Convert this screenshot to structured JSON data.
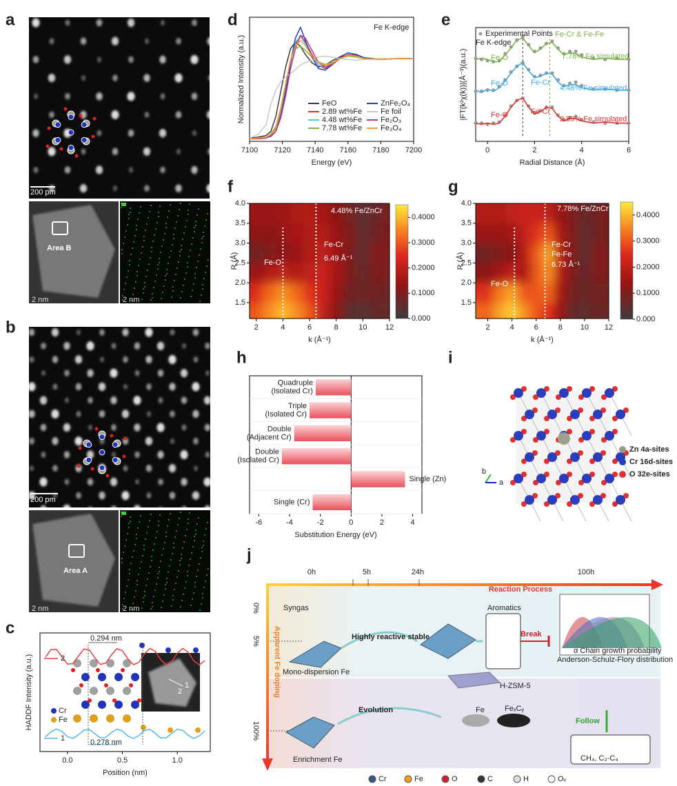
{
  "panel_labels": [
    "a",
    "b",
    "c",
    "d",
    "e",
    "f",
    "g",
    "h",
    "i",
    "j"
  ],
  "images": {
    "scale_a": "200 pm",
    "area_b": "Area B",
    "scale_b": "200 pm",
    "area_a": "Area A",
    "small_scale": "2 nm"
  },
  "chart_data": [
    {
      "type": "line",
      "xlabel": "Position (nm)",
      "ylabel": "HADDF Intensity (a.u.)",
      "xlim": [
        -0.25,
        1.3
      ],
      "xticks": [
        {
          "value": 0,
          "label": "0.0"
        },
        {
          "value": 0.5,
          "label": "0.5"
        },
        {
          "value": 1,
          "label": "1.0"
        }
      ],
      "ylim": [
        0,
        10
      ],
      "x": [
        -0.2,
        -0.15,
        -0.1,
        -0.05,
        0,
        0.05,
        0.1,
        0.15,
        0.2,
        0.25,
        0.3,
        0.35,
        0.4,
        0.45,
        0.5,
        0.55,
        0.6,
        0.65,
        0.7,
        0.75,
        0.8,
        0.85,
        0.9,
        0.95,
        1.0,
        1.05,
        1.1,
        1.15,
        1.2,
        1.25
      ],
      "series": [
        {
          "name": "2",
          "color": "#e8403a",
          "values": [
            7.96,
            8.6,
            8.61,
            7.99,
            7.38,
            7.41,
            8.05,
            8.64,
            8.56,
            7.9,
            7.34,
            7.47,
            8.14,
            8.67,
            8.5,
            7.82,
            7.32,
            7.52,
            8.23,
            8.69,
            8.44,
            7.74,
            7.31,
            7.59,
            8.3,
            8.7,
            8.37,
            7.65,
            7.3,
            7.68
          ]
        },
        {
          "name": "1",
          "color": "#56b8e8",
          "values": [
            1.23,
            1.66,
            1.9,
            1.69,
            1.26,
            1.11,
            1.4,
            1.81,
            1.86,
            1.5,
            1.14,
            1.2,
            1.6,
            1.89,
            1.73,
            1.31,
            1.1,
            1.34,
            1.77,
            1.88,
            1.54,
            1.15,
            1.16,
            1.53,
            1.88,
            1.78,
            1.36,
            1.1,
            1.32,
            1.74
          ]
        }
      ],
      "annotations": [
        "0.294 nm",
        "0.278 nm"
      ],
      "legend": [
        "Cr",
        "Fe"
      ]
    },
    {
      "type": "line",
      "xlabel": "Energy (eV)",
      "ylabel": "Normalized Intensity (a.u.)",
      "annotation": "Fe K-edge",
      "xlim": [
        7100,
        7200
      ],
      "xticks": [
        7100,
        7120,
        7140,
        7160,
        7180,
        7200
      ],
      "ylim": [
        0,
        1.5
      ],
      "x": [
        7100,
        7105,
        7110,
        7113,
        7116,
        7119,
        7122,
        7125,
        7128,
        7131,
        7134,
        7138,
        7142,
        7146,
        7150,
        7155,
        7160,
        7165,
        7170,
        7180,
        7190,
        7200
      ],
      "series": [
        {
          "name": "FeO",
          "color": "#3a3a3a",
          "values": [
            0.04,
            0.05,
            0.07,
            0.12,
            0.3,
            0.6,
            0.9,
            1.12,
            1.2,
            1.15,
            1.05,
            0.95,
            0.9,
            0.92,
            0.97,
            1.02,
            1.04,
            1.02,
            1.0,
            0.99,
            1.0,
            1.0
          ]
        },
        {
          "name": "2.89 wt%Fe",
          "color": "#d8262c",
          "values": [
            0.03,
            0.04,
            0.05,
            0.08,
            0.15,
            0.35,
            0.65,
            0.95,
            1.18,
            1.28,
            1.2,
            1.05,
            0.92,
            0.88,
            0.92,
            1.0,
            1.05,
            1.04,
            1.01,
            0.99,
            1.0,
            1.0
          ]
        },
        {
          "name": "4.48 wt%Fe",
          "color": "#4fc3f7",
          "values": [
            0.03,
            0.04,
            0.05,
            0.08,
            0.16,
            0.37,
            0.68,
            0.98,
            1.2,
            1.27,
            1.18,
            1.03,
            0.92,
            0.9,
            0.93,
            1.0,
            1.04,
            1.03,
            1.01,
            0.99,
            1.0,
            1.0
          ]
        },
        {
          "name": "7.78 wt%Fe",
          "color": "#7cb342",
          "values": [
            0.03,
            0.04,
            0.05,
            0.09,
            0.18,
            0.4,
            0.7,
            0.98,
            1.12,
            1.15,
            1.1,
            1.02,
            0.96,
            0.93,
            0.95,
            1.0,
            1.03,
            1.02,
            1.0,
            0.99,
            1.0,
            1.0
          ]
        },
        {
          "name": "ZnFe₂O₄",
          "color": "#2040c0",
          "values": [
            0.03,
            0.03,
            0.04,
            0.06,
            0.12,
            0.3,
            0.6,
            0.95,
            1.25,
            1.38,
            1.22,
            1.02,
            0.88,
            0.86,
            0.92,
            1.02,
            1.07,
            1.05,
            1.01,
            0.99,
            1.0,
            1.0
          ]
        },
        {
          "name": "Fe foil",
          "color": "#c8c8c8",
          "values": [
            0.04,
            0.08,
            0.2,
            0.45,
            0.62,
            0.72,
            0.78,
            0.82,
            0.87,
            0.92,
            0.95,
            0.98,
            1.02,
            1.03,
            1.02,
            1.0,
            0.99,
            0.98,
            0.99,
            1.0,
            1.0,
            1.0
          ]
        },
        {
          "name": "Fe₂O₃",
          "color": "#c2388a",
          "values": [
            0.03,
            0.03,
            0.04,
            0.07,
            0.12,
            0.28,
            0.55,
            0.88,
            1.12,
            1.28,
            1.25,
            1.1,
            0.95,
            0.9,
            0.93,
            1.0,
            1.04,
            1.03,
            1.0,
            0.99,
            1.0,
            1.0
          ]
        },
        {
          "name": "Fe₃O₄",
          "color": "#f0a030",
          "values": [
            0.03,
            0.04,
            0.05,
            0.08,
            0.16,
            0.38,
            0.7,
            0.98,
            1.15,
            1.22,
            1.16,
            1.03,
            0.95,
            0.92,
            0.94,
            1.0,
            1.04,
            1.03,
            1.0,
            0.99,
            1.0,
            1.0
          ]
        }
      ]
    },
    {
      "type": "line",
      "xlabel": "Radial Distance (Å)",
      "ylabel": "|FT(k²χ(k))|(Å⁻³)(a.u.)",
      "annotation": "Fe K-edge",
      "legend": "Experimental Points",
      "experimental_color": "#9a9a9a",
      "xlim": [
        -0.5,
        6
      ],
      "xticks": [
        0,
        2,
        4,
        6
      ],
      "ylim": [
        0,
        10
      ],
      "vlines": [
        1.5,
        2.65
      ],
      "x": [
        -0.5,
        -0.25,
        0,
        0.25,
        0.5,
        0.75,
        1.0,
        1.25,
        1.5,
        1.75,
        2.0,
        2.25,
        2.5,
        2.75,
        3.0,
        3.25,
        3.5,
        3.75,
        4.0,
        4.5,
        5.0,
        5.5,
        6.0
      ],
      "series": [
        {
          "name": "7.78% Fe simulated",
          "color": "#7cb342",
          "peak_labels": [
            "Fe-O",
            "Fe-Cr & Fe-Fe"
          ],
          "values": [
            7.2,
            7.3,
            7.2,
            7.0,
            7.0,
            7.6,
            8.2,
            8.9,
            9.1,
            8.4,
            7.8,
            8.1,
            8.6,
            8.7,
            8.1,
            7.6,
            7.8,
            7.7,
            7.4,
            7.2,
            7.3,
            7.2,
            7.2
          ],
          "experimental": [
            7.3,
            7.2,
            7.1,
            7.0,
            7.1,
            7.7,
            8.3,
            8.9,
            9.2,
            8.5,
            7.9,
            8.2,
            8.6,
            8.8,
            8.2,
            7.7,
            7.9,
            7.9,
            7.6,
            7.3,
            7.2,
            7.3,
            7.2
          ]
        },
        {
          "name": "4.48%  Fe simulated",
          "color": "#3fa9e6",
          "peak_labels": [
            "Fe-O",
            "Fe-Cr"
          ],
          "values": [
            4.5,
            4.3,
            4.6,
            4.4,
            4.7,
            5.3,
            6.0,
            6.6,
            6.9,
            6.2,
            5.6,
            5.7,
            6.0,
            5.9,
            5.2,
            4.8,
            5.0,
            5.0,
            4.7,
            4.5,
            4.6,
            4.5,
            4.5
          ],
          "experimental": [
            4.4,
            4.4,
            4.5,
            4.5,
            4.8,
            5.4,
            6.1,
            6.6,
            6.9,
            6.3,
            5.7,
            5.8,
            6.0,
            6.0,
            5.4,
            4.9,
            5.1,
            5.2,
            4.9,
            4.6,
            4.6,
            4.5,
            4.5
          ]
        },
        {
          "name": "2.89%  Fe simulated",
          "color": "#d9342b",
          "peak_labels": [
            "Fe-O",
            "Fe-Cr"
          ],
          "values": [
            1.6,
            1.5,
            1.6,
            1.5,
            1.6,
            2.2,
            3.0,
            3.6,
            3.8,
            3.0,
            2.4,
            2.6,
            3.0,
            2.9,
            2.2,
            1.8,
            2.0,
            2.0,
            1.8,
            1.6,
            1.7,
            1.6,
            1.6
          ],
          "experimental": [
            1.6,
            1.6,
            1.5,
            1.6,
            1.7,
            2.3,
            3.1,
            3.6,
            3.8,
            3.1,
            2.5,
            2.7,
            3.0,
            3.0,
            2.3,
            1.9,
            2.1,
            2.2,
            1.9,
            1.7,
            1.6,
            1.6,
            1.6
          ]
        }
      ]
    },
    {
      "type": "heatmap",
      "title": "4.48% Fe/ZnCr",
      "xlabel": "k (Å⁻¹)",
      "ylabel": "R (Å)",
      "xlim": [
        1.5,
        12
      ],
      "xticks": [
        2,
        4,
        6,
        8,
        10,
        12
      ],
      "ylim": [
        1.1,
        4.0
      ],
      "yticks": [
        1.5,
        {
          "value": 2,
          "label": "2.0"
        },
        2.5,
        {
          "value": 3,
          "label": "3.0"
        },
        3.5,
        {
          "value": 4,
          "label": "4.0"
        }
      ],
      "k": [
        2,
        3,
        4,
        5,
        6,
        7,
        8,
        9,
        10,
        11,
        12
      ],
      "R": [
        1.25,
        1.75,
        2.25,
        2.75,
        3.25,
        3.75
      ],
      "z": [
        [
          0.3,
          0.36,
          0.4,
          0.36,
          0.3,
          0.2,
          0.12,
          0.05,
          0.04,
          0.06,
          0.06
        ],
        [
          0.25,
          0.32,
          0.36,
          0.32,
          0.26,
          0.22,
          0.14,
          0.08,
          0.07,
          0.08,
          0.07
        ],
        [
          0.14,
          0.18,
          0.2,
          0.18,
          0.2,
          0.22,
          0.16,
          0.1,
          0.06,
          0.1,
          0.09
        ],
        [
          0.08,
          0.1,
          0.12,
          0.14,
          0.18,
          0.2,
          0.15,
          0.1,
          0.05,
          0.11,
          0.1
        ],
        [
          0.12,
          0.12,
          0.14,
          0.16,
          0.18,
          0.18,
          0.14,
          0.1,
          0.05,
          0.08,
          0.1
        ],
        [
          0.14,
          0.14,
          0.15,
          0.17,
          0.18,
          0.16,
          0.12,
          0.09,
          0.05,
          0.07,
          0.09
        ]
      ],
      "zlim": [
        0,
        0.45
      ],
      "zticks": [
        {
          "value": 0,
          "label": "0.000"
        },
        {
          "value": 0.1,
          "label": "0.1000"
        },
        {
          "value": 0.2,
          "label": "0.2000"
        },
        {
          "value": 0.3,
          "label": "0.3000"
        },
        {
          "value": 0.4,
          "label": "0.4000"
        }
      ],
      "vlines": [
        4,
        6.49
      ],
      "annotations": [
        "Fe-O",
        "Fe-Cr",
        "6.49 Å⁻¹"
      ]
    },
    {
      "type": "heatmap",
      "title": "7.78% Fe/ZnCr",
      "xlabel": "k (Å⁻¹)",
      "ylabel": "R (Å)",
      "xlim": [
        1,
        12
      ],
      "xticks": [
        2,
        4,
        6,
        8,
        10,
        12
      ],
      "ylim": [
        1.1,
        4.0
      ],
      "yticks": [
        1.5,
        {
          "value": 2,
          "label": "2.0"
        },
        2.5,
        {
          "value": 3,
          "label": "3.0"
        },
        3.5,
        {
          "value": 4,
          "label": "4.0"
        }
      ],
      "k": [
        2,
        3,
        4,
        5,
        6,
        7,
        8,
        9,
        10,
        11,
        12
      ],
      "R": [
        1.25,
        1.75,
        2.25,
        2.75,
        3.25,
        3.75
      ],
      "z": [
        [
          0.32,
          0.38,
          0.42,
          0.36,
          0.3,
          0.26,
          0.14,
          0.06,
          0.05,
          0.07,
          0.07
        ],
        [
          0.26,
          0.34,
          0.38,
          0.3,
          0.3,
          0.32,
          0.16,
          0.08,
          0.07,
          0.08,
          0.08
        ],
        [
          0.12,
          0.16,
          0.2,
          0.16,
          0.3,
          0.36,
          0.18,
          0.1,
          0.06,
          0.1,
          0.1
        ],
        [
          0.08,
          0.1,
          0.12,
          0.18,
          0.3,
          0.38,
          0.18,
          0.1,
          0.05,
          0.11,
          0.1
        ],
        [
          0.14,
          0.14,
          0.16,
          0.2,
          0.26,
          0.3,
          0.16,
          0.1,
          0.05,
          0.08,
          0.1
        ],
        [
          0.18,
          0.18,
          0.2,
          0.22,
          0.22,
          0.2,
          0.14,
          0.1,
          0.06,
          0.08,
          0.1
        ]
      ],
      "zlim": [
        0,
        0.45
      ],
      "zticks": [
        {
          "value": 0,
          "label": "0.000"
        },
        {
          "value": 0.1,
          "label": "0.1000"
        },
        {
          "value": 0.2,
          "label": "0.2000"
        },
        {
          "value": 0.3,
          "label": "0.3000"
        },
        {
          "value": 0.4,
          "label": "0.4000"
        }
      ],
      "vlines": [
        4.2,
        6.73
      ],
      "annotations": [
        "Fe-O",
        "Fe-Cr",
        "Fe-Fe",
        "6.73 Å⁻¹"
      ]
    },
    {
      "type": "hbar",
      "xlabel": "Substitution Energy (eV)",
      "xlim": [
        -6.6,
        4.6
      ],
      "xticks": [
        -6,
        -4,
        -2,
        0,
        2,
        4
      ],
      "color": "#e8505b",
      "categories": [
        [
          "Quadruple",
          "(Isolated Cr)"
        ],
        [
          "Triple",
          "(Isolated Cr)"
        ],
        [
          "Double",
          "(Adjacent Cr)"
        ],
        [
          "Double",
          "(Isolated Cr)"
        ],
        [
          "Single (Zn)"
        ],
        [
          "Single (Cr)"
        ]
      ],
      "values": [
        -2.3,
        -2.7,
        -3.7,
        -4.5,
        3.5,
        -2.5
      ]
    }
  ],
  "structure": {
    "legend": [
      "Zn  4a-sites",
      "Cr 16d-sites",
      "O  32e-sites"
    ],
    "axes": [
      "b",
      "a"
    ]
  },
  "scheme": {
    "times": [
      "0h",
      "5h",
      "24h",
      "100h"
    ],
    "process": "Reaction Process",
    "doping": [
      "0%",
      "5%",
      "100%"
    ],
    "doping_label": "Apparent Fe doping",
    "labels": {
      "syngas": "Syngas",
      "mono": "Mono-dispersion Fe",
      "stable": "Highly reactive stable",
      "zsm": "H-ZSM-5",
      "enrich": "Enrichment Fe",
      "evolution": "Evolution",
      "fe": "Fe",
      "fexcy": "FeₓCᵧ",
      "aromatics": "Aromatics",
      "break": "Break",
      "asf": "Anderson-Schulz-Flory distribution",
      "asf_axis": "α Chain growth probability",
      "follow": "Follow",
      "products": "CH₄, C₂-C₄"
    },
    "legend": [
      "Cr",
      "Fe",
      "O",
      "C",
      "H",
      "Oᵥ"
    ]
  }
}
